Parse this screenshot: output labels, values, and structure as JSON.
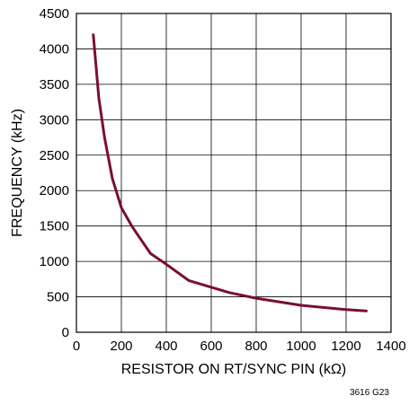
{
  "chart_data": {
    "type": "line",
    "title": "",
    "xlabel": "RESISTOR ON RT/SYNC PIN (kΩ)",
    "ylabel": "FREQUENCY (kHz)",
    "xlim": [
      0,
      1400
    ],
    "ylim": [
      0,
      4500
    ],
    "xticks": [
      0,
      200,
      400,
      600,
      800,
      1000,
      1200,
      1400
    ],
    "yticks": [
      0,
      500,
      1000,
      1500,
      2000,
      2500,
      3000,
      3500,
      4000,
      4500
    ],
    "grid": true,
    "series": [
      {
        "name": "",
        "color": "#7a0f2e",
        "x": [
          75,
          100,
          125,
          160,
          200,
          250,
          330,
          400,
          500,
          680,
          800,
          1000,
          1200,
          1290
        ],
        "y": [
          4200,
          3300,
          2750,
          2170,
          1760,
          1480,
          1110,
          960,
          730,
          560,
          480,
          380,
          320,
          300
        ]
      }
    ],
    "figure_id": "3616 G23"
  }
}
